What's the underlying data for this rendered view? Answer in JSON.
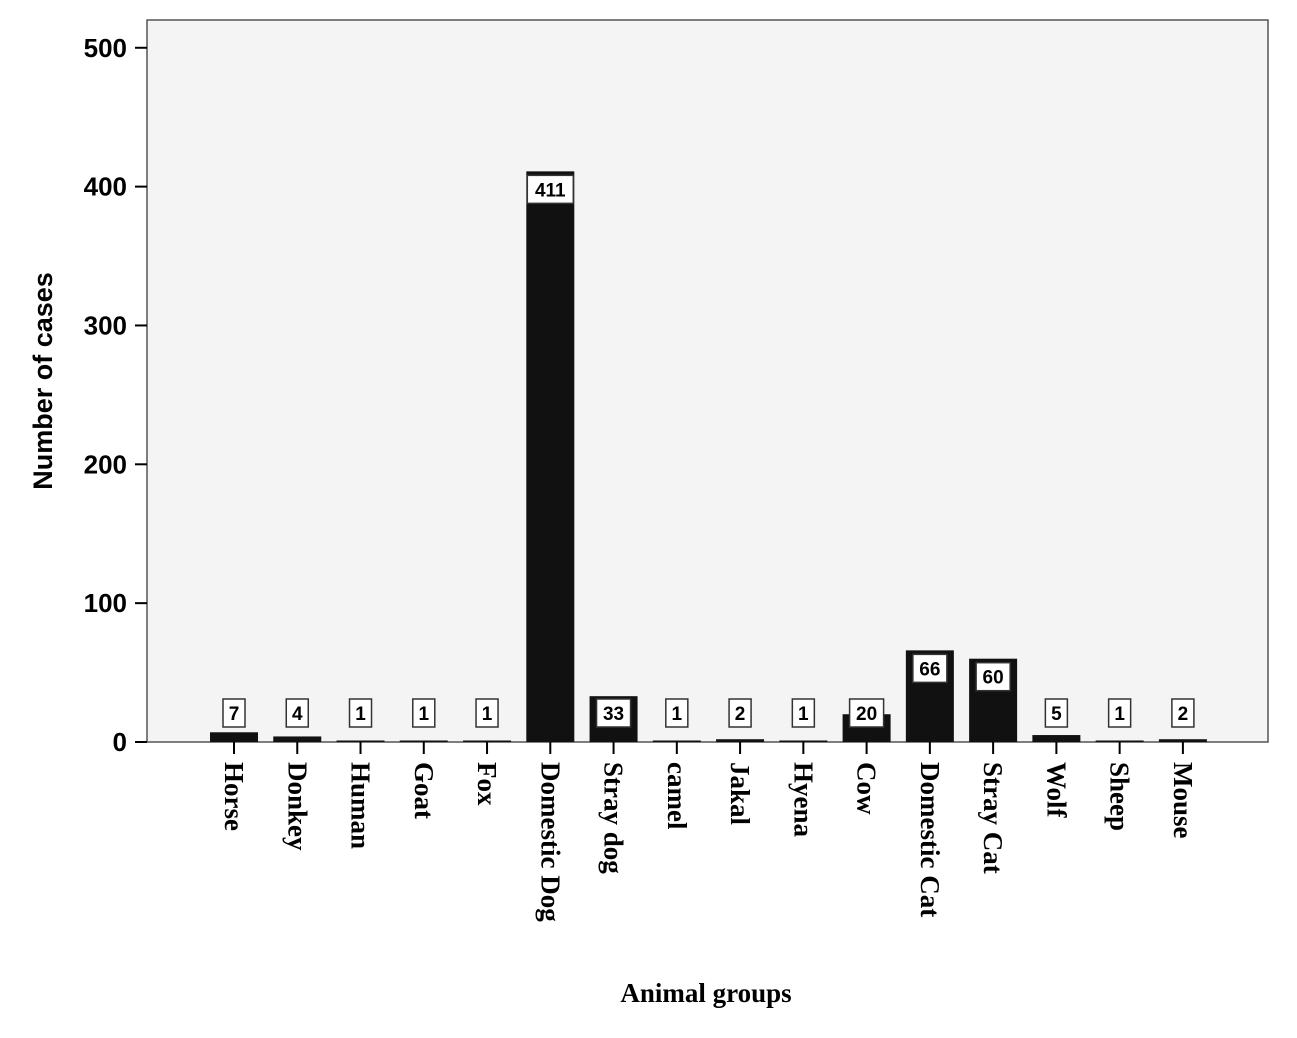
{
  "chart_data": {
    "type": "bar",
    "xlabel": "Animal groups",
    "ylabel": "Number of cases",
    "ylim": [
      0,
      520
    ],
    "yticks": [
      0,
      100,
      200,
      300,
      400,
      500
    ],
    "grid": false,
    "categories": [
      "Horse",
      "Donkey",
      "Human",
      "Goat",
      "Fox",
      "Domestic Dog",
      "Stray dog",
      "camel",
      "Jakal",
      "Hyena",
      "Cow",
      "Domestic Cat",
      "Stray Cat",
      "Wolf",
      "Sheep",
      "Mouse"
    ],
    "values": [
      7,
      4,
      1,
      1,
      1,
      411,
      33,
      1,
      2,
      1,
      20,
      66,
      60,
      5,
      1,
      2
    ],
    "data_labels": [
      "7",
      "4",
      "1",
      "1",
      "1",
      "411",
      "33",
      "1",
      "2",
      "1",
      "20",
      "66",
      "60",
      "5",
      "1",
      "2"
    ],
    "colors": {
      "bar": "#111111",
      "plot_background": "#f3f4f3",
      "axis": "#555555"
    }
  }
}
